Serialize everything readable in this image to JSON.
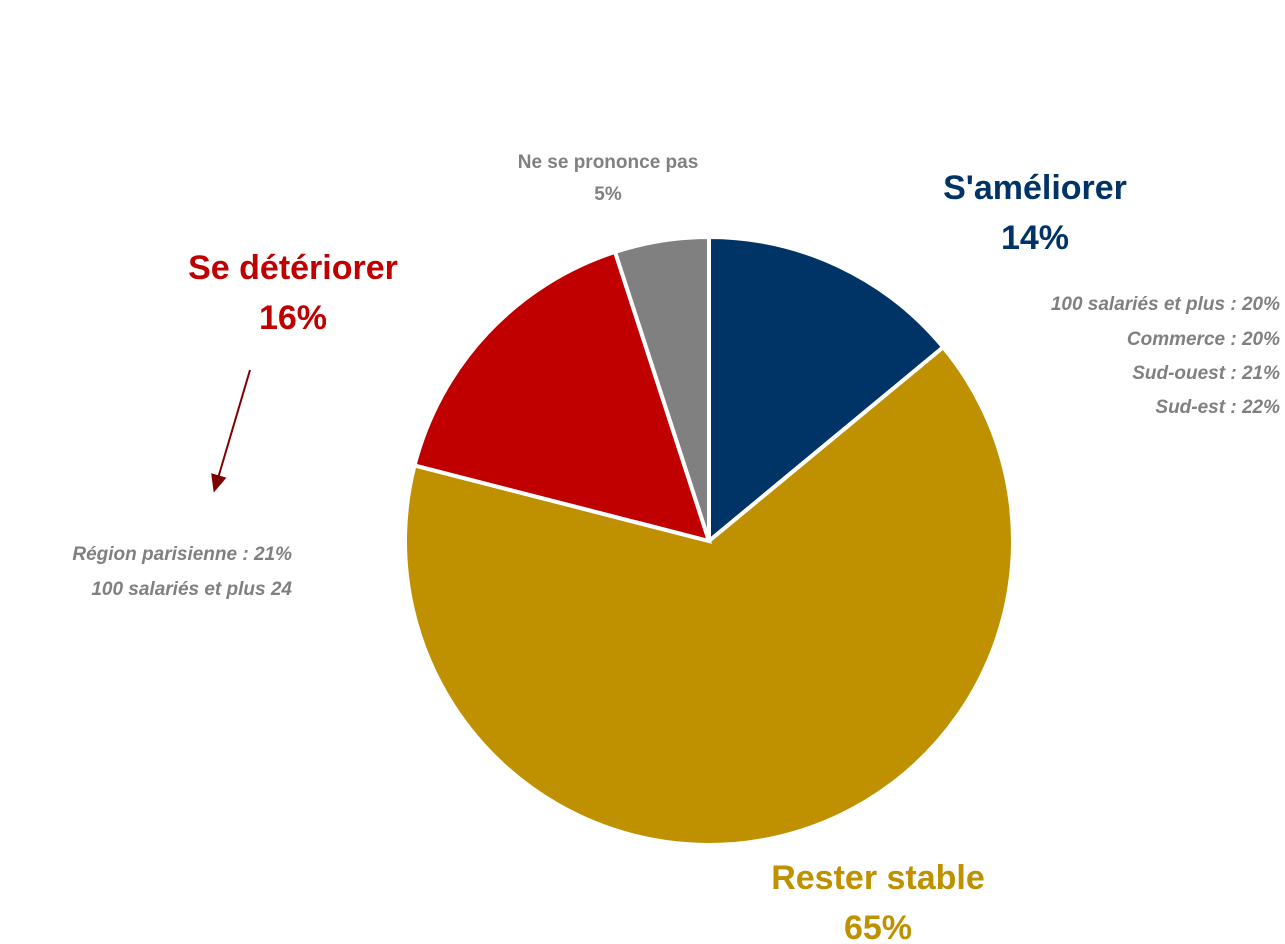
{
  "chart_data": {
    "type": "pie",
    "categories": [
      "S'améliorer",
      "Rester stable",
      "Se détériorer",
      "Ne se prononce pas"
    ],
    "values": [
      14,
      65,
      16,
      5
    ],
    "value_labels": [
      "14%",
      "65%",
      "16%",
      "5%"
    ],
    "colors": [
      "#003366",
      "#bf9000",
      "#c00000",
      "#808080"
    ],
    "annotations": [
      [
        "100 salariés et plus : 20%",
        "Commerce : 20%",
        "Sud-ouest : 21%",
        "Sud-est : 22%"
      ],
      [
        "Région parisienne : 21%",
        "100 salariés et plus 24"
      ]
    ]
  }
}
